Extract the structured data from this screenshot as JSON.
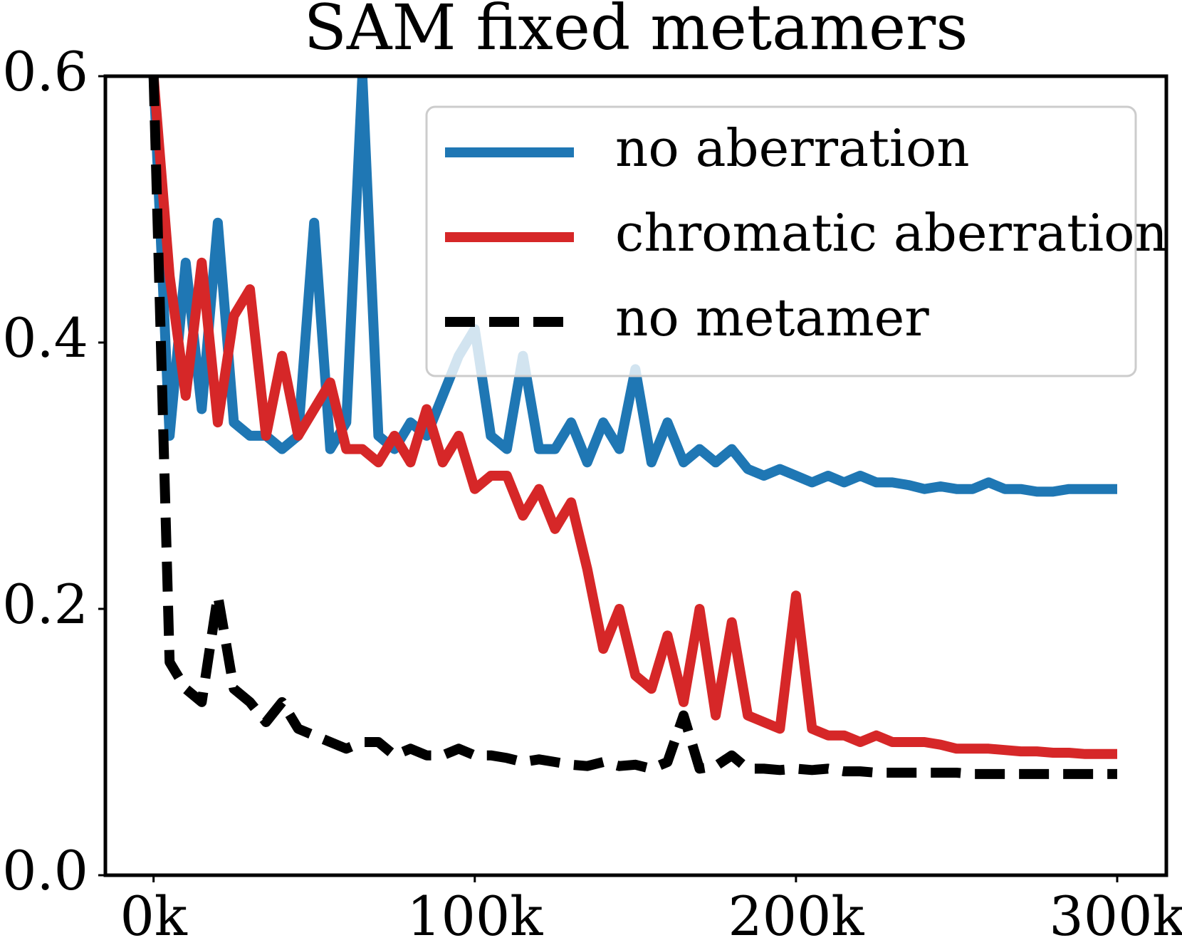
{
  "chart_data": {
    "type": "line",
    "title": "SAM fixed metamers",
    "x": [
      0,
      5000,
      10000,
      15000,
      20000,
      25000,
      30000,
      35000,
      40000,
      45000,
      50000,
      55000,
      60000,
      65000,
      70000,
      75000,
      80000,
      85000,
      90000,
      95000,
      100000,
      105000,
      110000,
      115000,
      120000,
      125000,
      130000,
      135000,
      140000,
      145000,
      150000,
      155000,
      160000,
      165000,
      170000,
      175000,
      180000,
      185000,
      190000,
      195000,
      200000,
      205000,
      210000,
      215000,
      220000,
      225000,
      230000,
      235000,
      240000,
      245000,
      250000,
      255000,
      260000,
      265000,
      270000,
      275000,
      280000,
      285000,
      290000,
      295000,
      300000
    ],
    "series": [
      {
        "name": "no aberration",
        "color": "#1f77b4",
        "dash": false,
        "values": [
          0.6,
          0.33,
          0.46,
          0.35,
          0.49,
          0.34,
          0.33,
          0.33,
          0.32,
          0.33,
          0.49,
          0.32,
          0.34,
          0.6,
          0.33,
          0.32,
          0.34,
          0.33,
          0.36,
          0.39,
          0.41,
          0.33,
          0.32,
          0.39,
          0.32,
          0.32,
          0.34,
          0.31,
          0.34,
          0.32,
          0.38,
          0.31,
          0.34,
          0.31,
          0.32,
          0.31,
          0.32,
          0.305,
          0.3,
          0.305,
          0.3,
          0.295,
          0.3,
          0.295,
          0.3,
          0.295,
          0.295,
          0.293,
          0.29,
          0.292,
          0.29,
          0.29,
          0.295,
          0.29,
          0.29,
          0.288,
          0.288,
          0.29,
          0.29,
          0.29,
          0.29
        ]
      },
      {
        "name": "chromatic aberration",
        "color": "#d62728",
        "dash": false,
        "values": [
          0.6,
          0.45,
          0.36,
          0.46,
          0.34,
          0.42,
          0.44,
          0.33,
          0.39,
          0.33,
          0.35,
          0.37,
          0.32,
          0.32,
          0.31,
          0.33,
          0.31,
          0.35,
          0.31,
          0.33,
          0.29,
          0.3,
          0.3,
          0.27,
          0.29,
          0.26,
          0.28,
          0.23,
          0.17,
          0.2,
          0.15,
          0.14,
          0.18,
          0.13,
          0.2,
          0.12,
          0.19,
          0.12,
          0.115,
          0.11,
          0.21,
          0.11,
          0.105,
          0.105,
          0.1,
          0.105,
          0.1,
          0.1,
          0.1,
          0.098,
          0.095,
          0.095,
          0.095,
          0.094,
          0.093,
          0.093,
          0.092,
          0.092,
          0.091,
          0.091,
          0.091
        ]
      },
      {
        "name": "no metamer",
        "color": "#000000",
        "dash": true,
        "values": [
          0.6,
          0.16,
          0.14,
          0.13,
          0.21,
          0.14,
          0.13,
          0.115,
          0.13,
          0.11,
          0.105,
          0.1,
          0.095,
          0.1,
          0.1,
          0.09,
          0.095,
          0.09,
          0.09,
          0.095,
          0.09,
          0.09,
          0.088,
          0.085,
          0.087,
          0.085,
          0.083,
          0.082,
          0.085,
          0.082,
          0.083,
          0.08,
          0.085,
          0.12,
          0.08,
          0.082,
          0.09,
          0.08,
          0.08,
          0.079,
          0.08,
          0.079,
          0.08,
          0.078,
          0.078,
          0.077,
          0.077,
          0.077,
          0.077,
          0.077,
          0.077,
          0.076,
          0.076,
          0.076,
          0.076,
          0.076,
          0.076,
          0.076,
          0.076,
          0.076,
          0.076
        ]
      }
    ],
    "xlim": [
      -15000,
      315300
    ],
    "xticks": [
      {
        "value": 0,
        "label": "0k"
      },
      {
        "value": 100000,
        "label": "100k"
      },
      {
        "value": 200000,
        "label": "200k"
      },
      {
        "value": 300000,
        "label": "300k"
      }
    ],
    "ylim": [
      0,
      0.6
    ],
    "yticks": [
      {
        "value": 0,
        "label": "0.0"
      },
      0.2,
      0.4,
      0.6
    ],
    "legend": "upper right",
    "grid": false
  }
}
